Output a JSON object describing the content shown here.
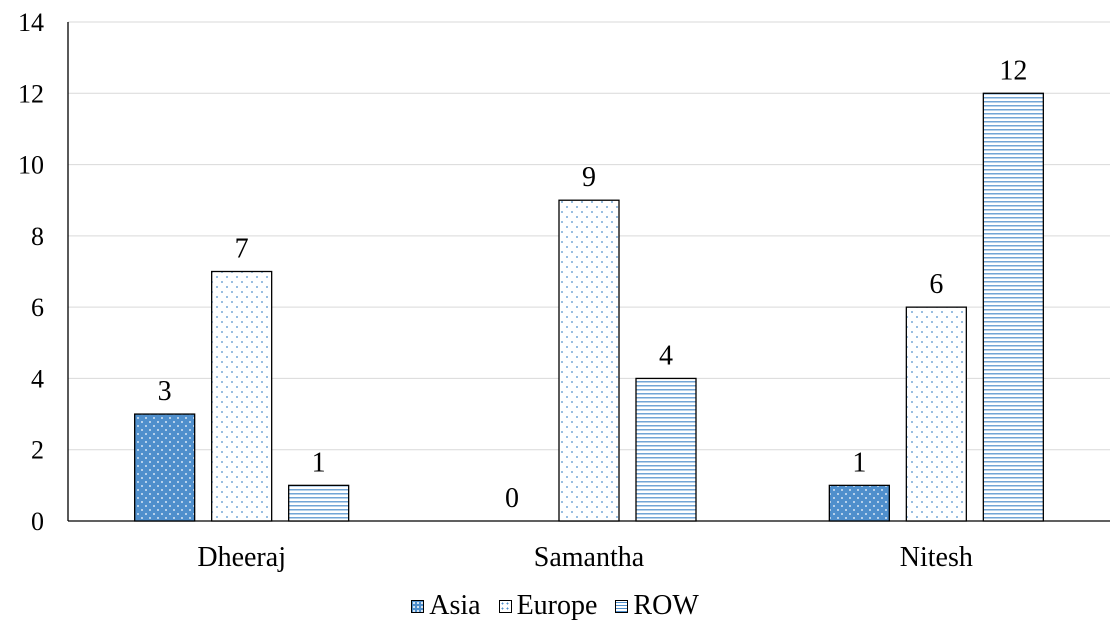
{
  "chart_data": {
    "type": "bar",
    "title": "",
    "xlabel": "",
    "ylabel": "",
    "categories": [
      "Dheeraj",
      "Samantha",
      "Nitesh"
    ],
    "series": [
      {
        "name": "Asia",
        "values": [
          3,
          0,
          1
        ],
        "color": "#4f8fcc",
        "pattern": "dotted-fill"
      },
      {
        "name": "Europe",
        "values": [
          7,
          9,
          6
        ],
        "color": "#4f8fcc",
        "pattern": "sparse-dots"
      },
      {
        "name": "ROW",
        "values": [
          1,
          4,
          12
        ],
        "color": "#4f8fcc",
        "pattern": "horizontal-lines"
      }
    ],
    "ylim": [
      0,
      14
    ],
    "yticks": [
      "0",
      "2",
      "4",
      "6",
      "8",
      "10",
      "12",
      "14"
    ],
    "grid": true,
    "legend_position": "bottom",
    "data_labels": true
  }
}
